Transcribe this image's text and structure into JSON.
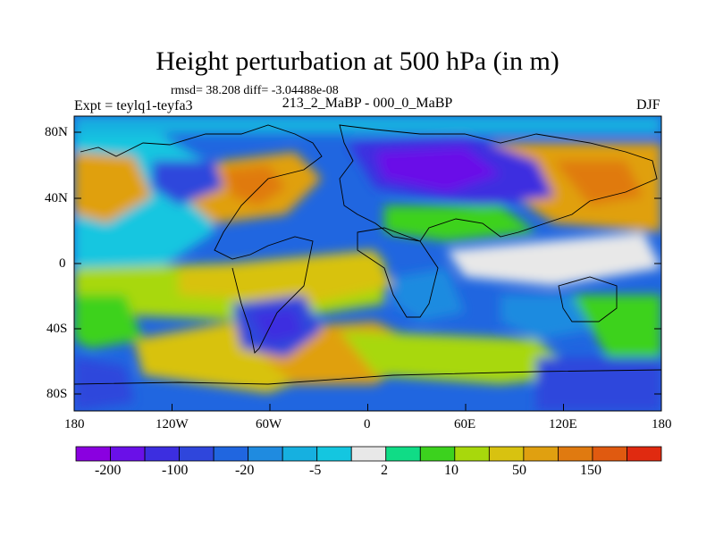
{
  "title": "Height perturbation at 500 hPa (in m)",
  "stats_line": "rmsd= 38.208 diff= -3.04488e-08",
  "experiment_label": "Expt = teylq1-teyfa3",
  "period_label": "213_2_MaBP - 000_0_MaBP",
  "season_label": "DJF",
  "map": {
    "projection": "cylindrical equidistant",
    "lon_range": [
      -180,
      180
    ],
    "lat_range": [
      -90,
      90
    ],
    "x_ticks": [
      "180",
      "120W",
      "60W",
      "0",
      "60E",
      "120E",
      "180"
    ],
    "y_ticks": [
      "80N",
      "40N",
      "0",
      "40S",
      "80S"
    ],
    "x_tick_values": [
      -180,
      -120,
      -60,
      0,
      60,
      120,
      180
    ],
    "y_tick_values": [
      80,
      40,
      0,
      -40,
      -80
    ]
  },
  "colorbar": {
    "labels": [
      "-200",
      "-100",
      "-20",
      "-5",
      "2",
      "10",
      "50",
      "150"
    ],
    "colors": [
      "#8a00e0",
      "#6a10e8",
      "#3c2ee0",
      "#2f46dc",
      "#2066e0",
      "#1f8be0",
      "#16b0e0",
      "#14c6e0",
      "#e8e8e8",
      "#10dc86",
      "#3cd21e",
      "#a8d80c",
      "#d8c210",
      "#e0a010",
      "#e07a10",
      "#e05a10",
      "#e02a10"
    ],
    "color_names": [
      "violet",
      "purple",
      "indigo",
      "blue",
      "royal-blue",
      "azure",
      "sky-blue",
      "cyan",
      "light-gray",
      "teal-green",
      "green",
      "yellow-green",
      "gold",
      "orange",
      "dark-orange",
      "red-orange",
      "red"
    ]
  }
}
